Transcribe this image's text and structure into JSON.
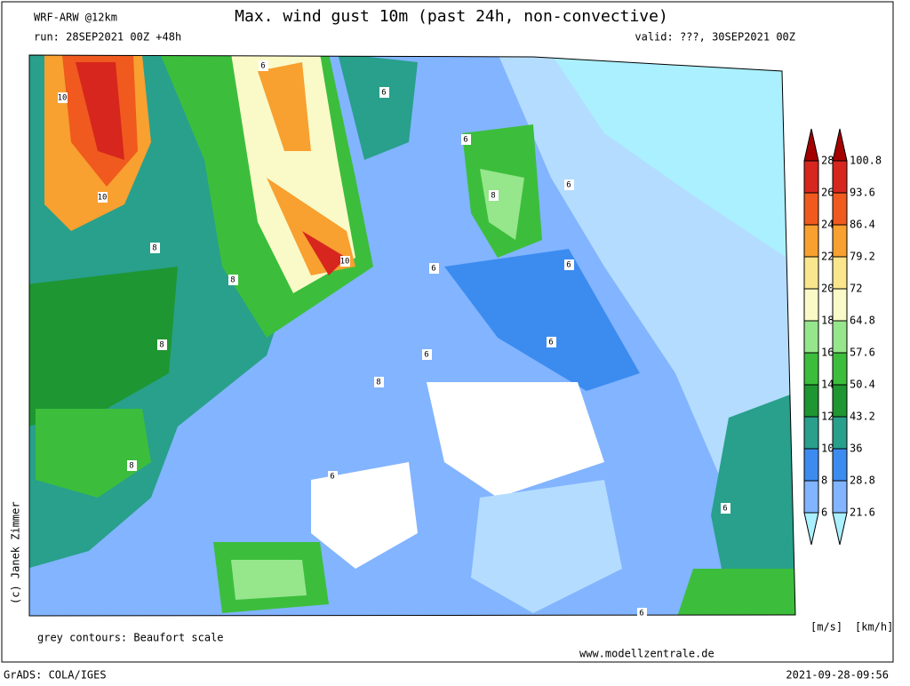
{
  "header": {
    "model": "WRF-ARW @12km",
    "title": "Max. wind gust 10m (past 24h, non-convective)",
    "run": "run: 28SEP2021 00Z +48h",
    "valid": "valid: ???, 30SEP2021 00Z"
  },
  "map": {
    "contour_labels": [
      "10",
      "10",
      "10",
      "6",
      "6",
      "6",
      "6",
      "8",
      "8",
      "8",
      "8",
      "8",
      "6",
      "6",
      "6",
      "6",
      "8",
      "6",
      "6",
      "6"
    ]
  },
  "colorbar": {
    "ms": [
      28,
      26,
      24,
      22,
      20,
      18,
      16,
      14,
      12,
      10,
      8,
      6
    ],
    "kmh": [
      100.8,
      93.6,
      86.4,
      79.2,
      72,
      64.8,
      57.6,
      50.4,
      43.2,
      36,
      28.8,
      21.6
    ],
    "colors": [
      "#a50000",
      "#d7261e",
      "#f05a1e",
      "#f8a030",
      "#fae68c",
      "#fafac8",
      "#96e68c",
      "#3cbe3c",
      "#1e9632",
      "#28a08c",
      "#3c8cf0",
      "#82b4ff",
      "#b4dcff",
      "#aaf0ff"
    ],
    "unit_ms": "[m/s]",
    "unit_kmh": "[km/h]"
  },
  "footer": {
    "note": "grey contours: Beaufort scale",
    "site": "www.modellzentrale.de",
    "software": "GrADS: COLA/IGES",
    "timestamp": "2021-09-28-09:56",
    "credit": "(c) Janek Zimmer"
  }
}
